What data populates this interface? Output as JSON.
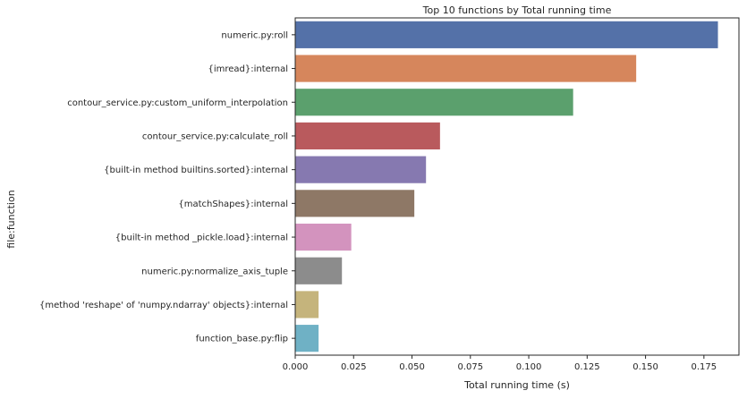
{
  "chart_data": {
    "type": "bar",
    "orientation": "horizontal",
    "title": "Top 10 functions by Total running time",
    "xlabel": "Total running time (s)",
    "ylabel": "file:function",
    "xlim": [
      0,
      0.19
    ],
    "x_ticks": [
      "0.000",
      "0.025",
      "0.050",
      "0.075",
      "0.100",
      "0.125",
      "0.150",
      "0.175"
    ],
    "x_tick_values": [
      0,
      0.025,
      0.05,
      0.075,
      0.1,
      0.125,
      0.15,
      0.175
    ],
    "grid": false,
    "categories": [
      "numeric.py:roll",
      "{imread}:internal",
      "contour_service.py:custom_uniform_interpolation",
      "contour_service.py:calculate_roll",
      "{built-in method builtins.sorted}:internal",
      "{matchShapes}:internal",
      "{built-in method _pickle.load}:internal",
      "numeric.py:normalize_axis_tuple",
      "{method 'reshape' of 'numpy.ndarray' objects}:internal",
      "function_base.py:flip"
    ],
    "values": [
      0.181,
      0.146,
      0.119,
      0.062,
      0.056,
      0.051,
      0.024,
      0.02,
      0.01,
      0.01
    ],
    "colors": [
      "#5471a8",
      "#d6865c",
      "#5ba06d",
      "#b95a5d",
      "#8679b0",
      "#8e7866",
      "#d393be",
      "#8c8c8c",
      "#c5b47c",
      "#6fb1c5"
    ]
  }
}
